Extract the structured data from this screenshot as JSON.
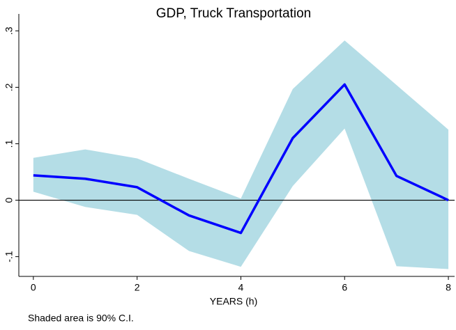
{
  "chart_data": {
    "type": "line",
    "title": "GDP, Truck Transportation",
    "x_label": "YEARS (h)",
    "note": "Shaded area is 90% C.I.",
    "x": [
      0,
      1,
      2,
      3,
      4,
      5,
      6,
      7,
      8
    ],
    "series": [
      {
        "color": "#0000ff",
        "values": [
          0.044,
          0.038,
          0.023,
          -0.027,
          -0.058,
          0.11,
          0.205,
          0.043,
          0
        ]
      }
    ],
    "band": {
      "color": "#b4dde6",
      "upper": [
        0.075,
        0.09,
        0.074,
        0.038,
        0.003,
        0.197,
        0.283,
        0.204,
        0.125
      ],
      "lower": [
        0.015,
        -0.012,
        -0.026,
        -0.09,
        -0.118,
        0.025,
        0.127,
        -0.117,
        -0.122
      ]
    },
    "hline": 0,
    "xlim": [
      -0.28,
      8.12
    ],
    "ylim": [
      -0.135,
      0.33
    ],
    "xticks": [
      0,
      2,
      4,
      6,
      8
    ],
    "yticks": [
      {
        "value": -0.1,
        "label": "-.1"
      },
      0,
      {
        "value": 0.1,
        "label": ".1"
      },
      {
        "value": 0.2,
        "label": ".2"
      },
      {
        "value": 0.3,
        "label": ".3"
      }
    ]
  }
}
